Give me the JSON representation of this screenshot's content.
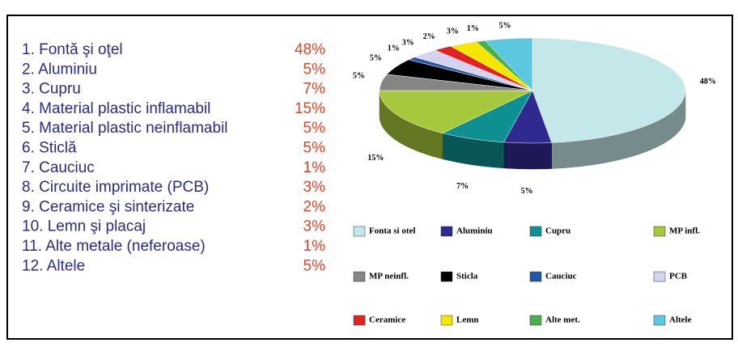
{
  "list": {
    "items": [
      {
        "label": "1. Fontă şi oţel",
        "percent": "48%"
      },
      {
        "label": "2. Aluminiu",
        "percent": "5%"
      },
      {
        "label": "3. Cupru",
        "percent": "7%"
      },
      {
        "label": "4. Material plastic inflamabil",
        "percent": "15%"
      },
      {
        "label": "5. Material plastic neinflamabil",
        "percent": "5%"
      },
      {
        "label": "6. Sticlă",
        "percent": "5%"
      },
      {
        "label": "7. Cauciuc",
        "percent": "1%"
      },
      {
        "label": "8. Circuite imprimate (PCB)",
        "percent": "3%"
      },
      {
        "label": "9. Ceramice şi sinterizate",
        "percent": "2%"
      },
      {
        "label": "10. Lemn şi placaj",
        "percent": "3%"
      },
      {
        "label": "11. Alte metale (neferoase)",
        "percent": "1%"
      },
      {
        "label": "12. Altele",
        "percent": "5%"
      }
    ]
  },
  "chart_data": {
    "type": "pie",
    "categories": [
      "Fonta si otel",
      "Aluminiu",
      "Cupru",
      "MP infl.",
      "MP neinfl.",
      "Sticla",
      "Cauciuc",
      "PCB",
      "Ceramice",
      "Lemn",
      "Alte met.",
      "Altele"
    ],
    "values": [
      48,
      5,
      7,
      15,
      5,
      5,
      1,
      3,
      2,
      3,
      1,
      5
    ],
    "value_labels": [
      "48%",
      "5%",
      "7%",
      "15%",
      "5%",
      "5%",
      "1%",
      "3%",
      "2%",
      "3%",
      "1%",
      "5%"
    ],
    "colors": [
      "#c4e8ea",
      "#2e2a8f",
      "#0e9090",
      "#a6c83c",
      "#858585",
      "#000000",
      "#2457a6",
      "#d4d4f0",
      "#e02222",
      "#f4e600",
      "#4cae4c",
      "#5cc8e0"
    ]
  }
}
